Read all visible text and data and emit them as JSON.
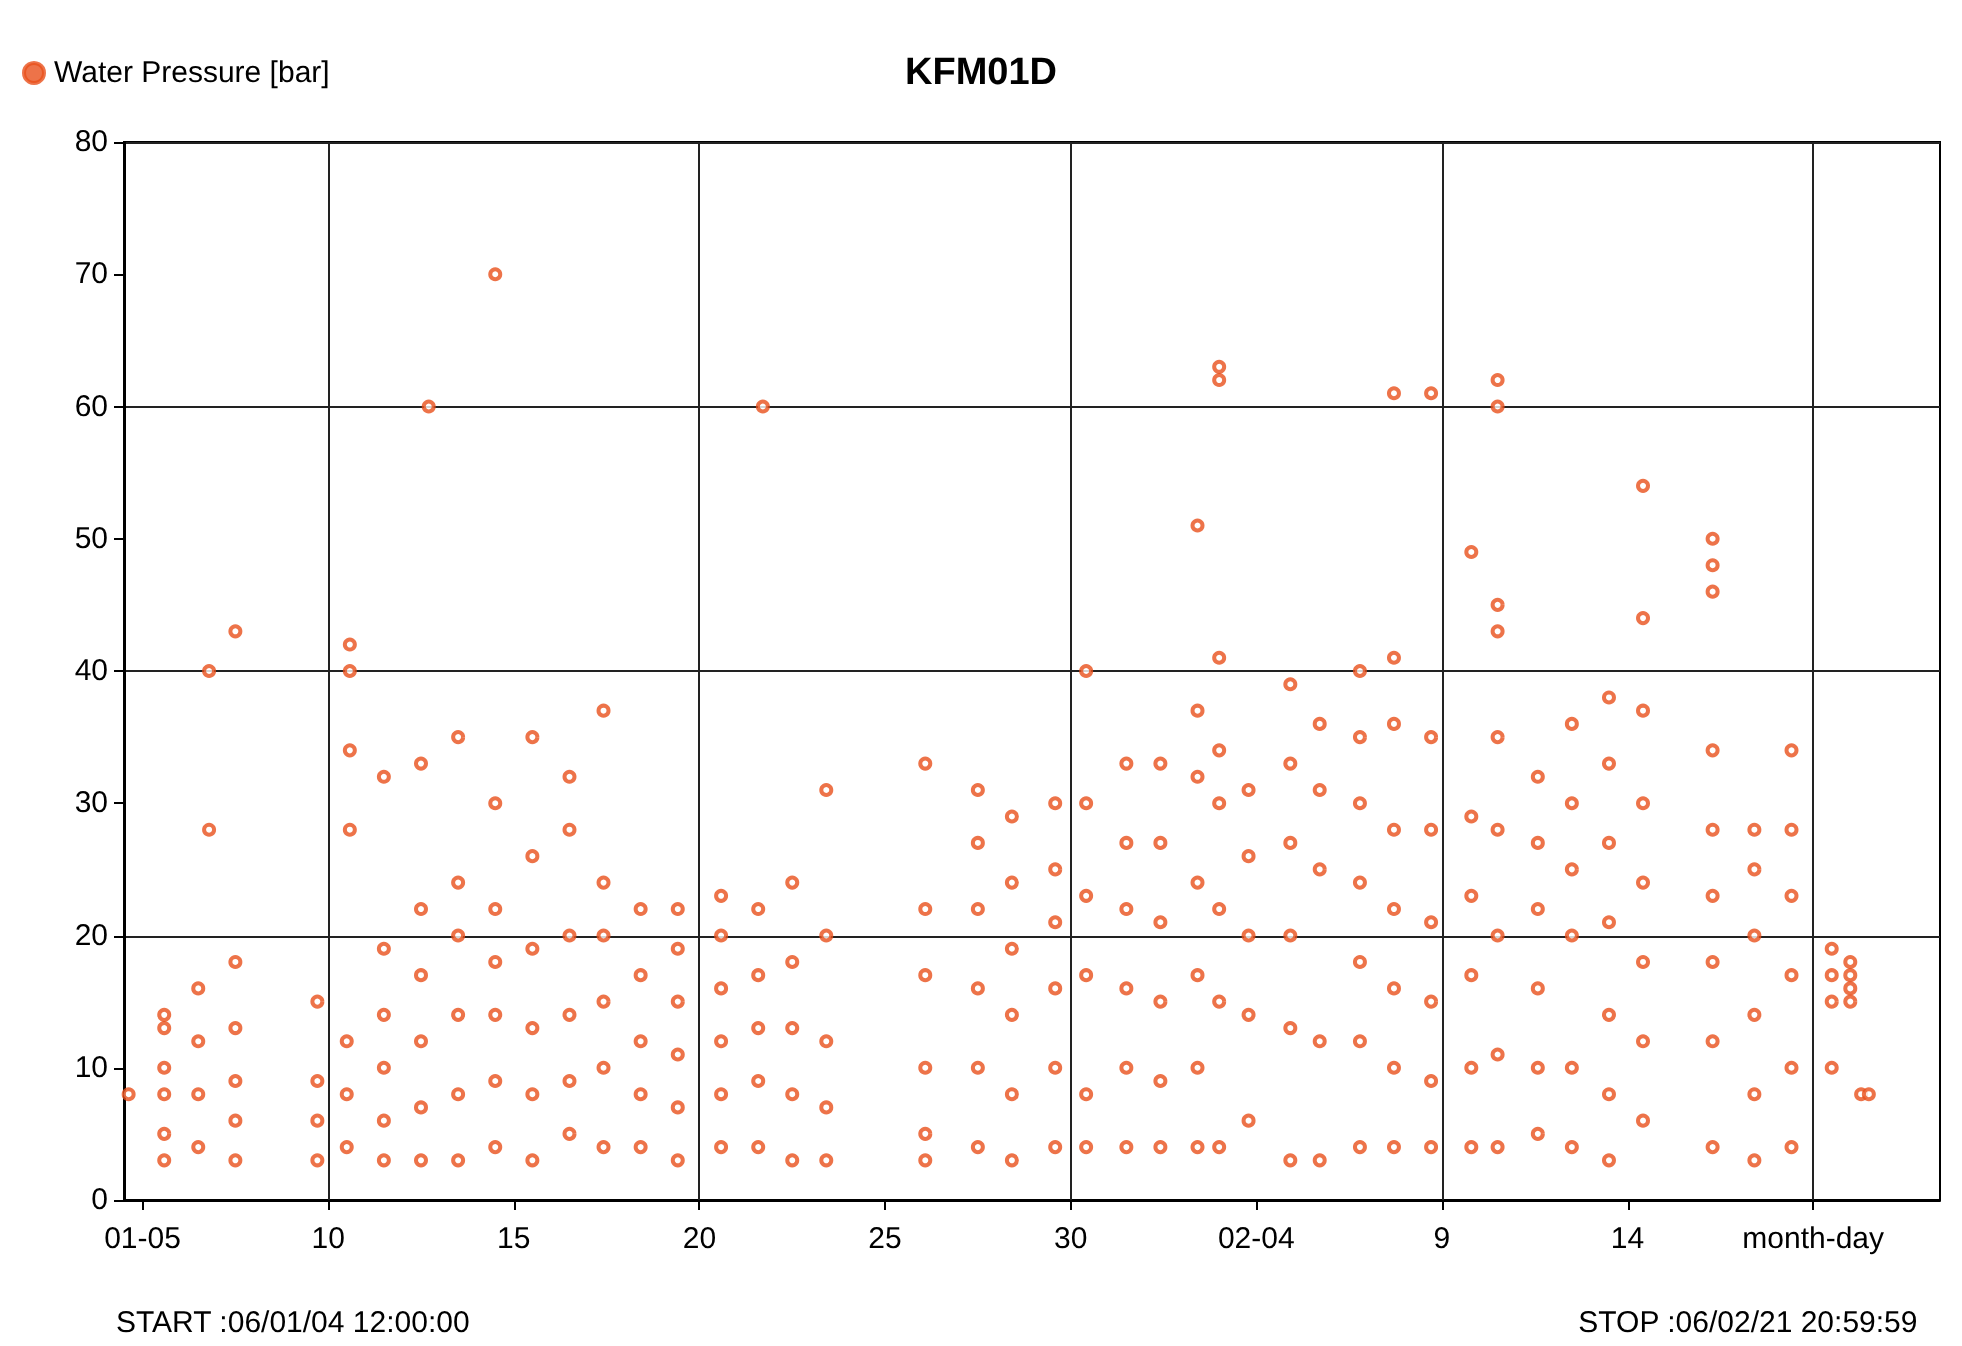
{
  "chart_data": {
    "type": "scatter",
    "title": "KFM01D",
    "annotations": [
      "START :06/01/04 12:00:00",
      "STOP :06/02/21 20:59:59"
    ],
    "xlim": [
      "--01-04T12:00",
      "--02-22T10:00"
    ],
    "xticks": [
      {
        "value": "--01-05",
        "label": "01-05"
      },
      {
        "value": "--01-10",
        "label": "10"
      },
      {
        "value": "--01-15",
        "label": "15"
      },
      {
        "value": "--01-20",
        "label": "20"
      },
      {
        "value": "--01-25",
        "label": "25"
      },
      {
        "value": "--01-30",
        "label": "30"
      },
      {
        "value": "--02-04",
        "label": "02-04"
      },
      {
        "value": "--02-09",
        "label": "9"
      },
      {
        "value": "--02-14",
        "label": "14"
      },
      {
        "value": "--02-19",
        "label": "month-day"
      }
    ],
    "ylim": [
      0,
      80
    ],
    "yticks": [
      0,
      10,
      20,
      30,
      40,
      50,
      60,
      70,
      80
    ],
    "grid": true,
    "legend": "top left",
    "marker": "circle",
    "series": [
      {
        "name": "Water Pressure [bar]",
        "color": "#e8501c",
        "x": [
          "--01-04T15:00",
          "--01-05T14:00",
          "--01-05T14:00",
          "--01-05T14:00",
          "--01-05T14:00",
          "--01-05T14:00",
          "--01-05T14:00",
          "--01-06T12:00",
          "--01-06T12:00",
          "--01-06T12:00",
          "--01-06T12:00",
          "--01-06T19:00",
          "--01-06T19:00",
          "--01-07T12:00",
          "--01-07T12:00",
          "--01-07T12:00",
          "--01-07T12:00",
          "--01-07T12:00",
          "--01-07T12:00",
          "--01-09T17:00",
          "--01-09T17:00",
          "--01-09T17:00",
          "--01-09T17:00",
          "--01-10T12:00",
          "--01-10T12:00",
          "--01-10T12:00",
          "--01-10T14:00",
          "--01-10T14:00",
          "--01-10T14:00",
          "--01-10T14:00",
          "--01-11T12:00",
          "--01-11T12:00",
          "--01-11T12:00",
          "--01-11T12:00",
          "--01-11T12:00",
          "--01-11T12:00",
          "--01-12T12:00",
          "--01-12T12:00",
          "--01-12T12:00",
          "--01-12T12:00",
          "--01-12T12:00",
          "--01-12T12:00",
          "--01-12T17:00",
          "--01-13T12:00",
          "--01-13T12:00",
          "--01-13T12:00",
          "--01-13T12:00",
          "--01-13T12:00",
          "--01-13T12:00",
          "--01-14T12:00",
          "--01-14T12:00",
          "--01-14T12:00",
          "--01-14T12:00",
          "--01-14T12:00",
          "--01-14T12:00",
          "--01-14T12:00",
          "--01-15T12:00",
          "--01-15T12:00",
          "--01-15T12:00",
          "--01-15T12:00",
          "--01-15T12:00",
          "--01-15T12:00",
          "--01-16T12:00",
          "--01-16T12:00",
          "--01-16T12:00",
          "--01-16T12:00",
          "--01-16T12:00",
          "--01-16T12:00",
          "--01-17T10:00",
          "--01-17T10:00",
          "--01-17T10:00",
          "--01-17T10:00",
          "--01-17T10:00",
          "--01-17T10:00",
          "--01-18T10:00",
          "--01-18T10:00",
          "--01-18T10:00",
          "--01-18T10:00",
          "--01-18T10:00",
          "--01-19T10:00",
          "--01-19T10:00",
          "--01-19T10:00",
          "--01-19T10:00",
          "--01-19T10:00",
          "--01-19T10:00",
          "--01-20T14:00",
          "--01-20T14:00",
          "--01-20T14:00",
          "--01-20T14:00",
          "--01-20T14:00",
          "--01-20T14:00",
          "--01-21T14:00",
          "--01-21T14:00",
          "--01-21T14:00",
          "--01-21T14:00",
          "--01-21T14:00",
          "--01-21T17:00",
          "--01-22T12:00",
          "--01-22T12:00",
          "--01-22T12:00",
          "--01-22T12:00",
          "--01-22T12:00",
          "--01-23T10:00",
          "--01-23T10:00",
          "--01-23T10:00",
          "--01-23T10:00",
          "--01-23T10:00",
          "--01-26T02:00",
          "--01-26T02:00",
          "--01-26T02:00",
          "--01-26T02:00",
          "--01-26T02:00",
          "--01-26T02:00",
          "--01-27T12:00",
          "--01-27T12:00",
          "--01-27T12:00",
          "--01-27T12:00",
          "--01-27T12:00",
          "--01-27T12:00",
          "--01-28T10:00",
          "--01-28T10:00",
          "--01-28T10:00",
          "--01-28T10:00",
          "--01-28T10:00",
          "--01-28T10:00",
          "--01-29T14:00",
          "--01-29T14:00",
          "--01-29T14:00",
          "--01-29T14:00",
          "--01-29T14:00",
          "--01-29T14:00",
          "--01-30T10:00",
          "--01-30T10:00",
          "--01-30T10:00",
          "--01-30T10:00",
          "--01-30T10:00",
          "--01-30T10:00",
          "--01-31T12:00",
          "--01-31T12:00",
          "--01-31T12:00",
          "--01-31T12:00",
          "--01-31T12:00",
          "--01-31T12:00",
          "--02-01T10:00",
          "--02-01T10:00",
          "--02-01T10:00",
          "--02-01T10:00",
          "--02-01T10:00",
          "--02-01T10:00",
          "--02-02T10:00",
          "--02-02T10:00",
          "--02-02T10:00",
          "--02-02T10:00",
          "--02-02T10:00",
          "--02-02T10:00",
          "--02-02T10:00",
          "--02-03T00:00",
          "--02-03T00:00",
          "--02-03T00:00",
          "--02-03T00:00",
          "--02-03T00:00",
          "--02-03T00:00",
          "--02-03T00:00",
          "--02-03T00:00",
          "--02-03T19:00",
          "--02-03T19:00",
          "--02-03T19:00",
          "--02-03T19:00",
          "--02-03T19:00",
          "--02-04T22:00",
          "--02-04T22:00",
          "--02-04T22:00",
          "--02-04T22:00",
          "--02-04T22:00",
          "--02-04T22:00",
          "--02-05T17:00",
          "--02-05T17:00",
          "--02-05T17:00",
          "--02-05T17:00",
          "--02-05T17:00",
          "--02-06T19:00",
          "--02-06T19:00",
          "--02-06T19:00",
          "--02-06T19:00",
          "--02-06T19:00",
          "--02-06T19:00",
          "--02-06T19:00",
          "--02-07T17:00",
          "--02-07T17:00",
          "--02-07T17:00",
          "--02-07T17:00",
          "--02-07T17:00",
          "--02-07T17:00",
          "--02-07T17:00",
          "--02-07T17:00",
          "--02-08T17:00",
          "--02-08T17:00",
          "--02-08T17:00",
          "--02-08T17:00",
          "--02-08T17:00",
          "--02-08T17:00",
          "--02-08T17:00",
          "--02-09T19:00",
          "--02-09T19:00",
          "--02-09T19:00",
          "--02-09T19:00",
          "--02-09T19:00",
          "--02-09T19:00",
          "--02-10T12:00",
          "--02-10T12:00",
          "--02-10T12:00",
          "--02-10T12:00",
          "--02-10T12:00",
          "--02-10T12:00",
          "--02-10T12:00",
          "--02-10T12:00",
          "--02-10T12:00",
          "--02-11T14:00",
          "--02-11T14:00",
          "--02-11T14:00",
          "--02-11T14:00",
          "--02-11T14:00",
          "--02-11T14:00",
          "--02-12T12:00",
          "--02-12T12:00",
          "--02-12T12:00",
          "--02-12T12:00",
          "--02-12T12:00",
          "--02-12T12:00",
          "--02-13T12:00",
          "--02-13T12:00",
          "--02-13T12:00",
          "--02-13T12:00",
          "--02-13T12:00",
          "--02-13T12:00",
          "--02-13T12:00",
          "--02-14T10:00",
          "--02-14T10:00",
          "--02-14T10:00",
          "--02-14T10:00",
          "--02-14T10:00",
          "--02-14T10:00",
          "--02-14T10:00",
          "--02-14T10:00",
          "--02-16T07:00",
          "--02-16T07:00",
          "--02-16T07:00",
          "--02-16T07:00",
          "--02-16T07:00",
          "--02-16T07:00",
          "--02-16T07:00",
          "--02-16T07:00",
          "--02-16T07:00",
          "--02-17T10:00",
          "--02-17T10:00",
          "--02-17T10:00",
          "--02-17T10:00",
          "--02-17T10:00",
          "--02-17T10:00",
          "--02-18T10:00",
          "--02-18T10:00",
          "--02-18T10:00",
          "--02-18T10:00",
          "--02-18T10:00",
          "--02-18T10:00",
          "--02-19T12:00",
          "--02-19T12:00",
          "--02-19T12:00",
          "--02-19T12:00",
          "--02-20T00:00",
          "--02-20T00:00",
          "--02-20T00:00",
          "--02-20T00:00",
          "--02-20T07:00",
          "--02-20T12:00"
        ],
        "values": [
          8,
          3,
          5,
          8,
          10,
          13,
          14,
          4,
          8,
          12,
          16,
          28,
          40,
          3,
          6,
          9,
          13,
          18,
          43,
          3,
          6,
          9,
          15,
          4,
          8,
          12,
          28,
          34,
          40,
          42,
          3,
          6,
          10,
          14,
          19,
          32,
          3,
          7,
          12,
          17,
          22,
          33,
          60,
          3,
          8,
          14,
          20,
          24,
          35,
          4,
          9,
          14,
          18,
          22,
          30,
          70,
          3,
          8,
          13,
          19,
          26,
          35,
          5,
          9,
          14,
          20,
          28,
          32,
          4,
          10,
          15,
          20,
          24,
          37,
          4,
          8,
          12,
          17,
          22,
          3,
          7,
          11,
          15,
          19,
          22,
          4,
          8,
          12,
          16,
          20,
          23,
          4,
          9,
          13,
          17,
          22,
          60,
          3,
          8,
          13,
          18,
          24,
          3,
          7,
          12,
          20,
          31,
          3,
          5,
          10,
          17,
          22,
          33,
          4,
          10,
          16,
          22,
          27,
          31,
          3,
          8,
          14,
          19,
          24,
          29,
          4,
          10,
          16,
          21,
          25,
          30,
          4,
          8,
          17,
          23,
          30,
          40,
          4,
          10,
          16,
          22,
          27,
          33,
          4,
          9,
          15,
          21,
          27,
          33,
          4,
          10,
          17,
          24,
          32,
          37,
          51,
          4,
          15,
          22,
          30,
          34,
          41,
          62,
          63,
          6,
          14,
          20,
          26,
          31,
          3,
          13,
          20,
          27,
          33,
          39,
          3,
          12,
          25,
          31,
          36,
          4,
          12,
          18,
          24,
          30,
          35,
          40,
          4,
          10,
          16,
          22,
          28,
          36,
          41,
          61,
          4,
          9,
          15,
          21,
          28,
          35,
          61,
          4,
          10,
          17,
          23,
          29,
          49,
          4,
          11,
          20,
          28,
          35,
          43,
          45,
          60,
          62,
          5,
          10,
          16,
          22,
          27,
          32,
          4,
          10,
          20,
          25,
          30,
          36,
          3,
          8,
          14,
          21,
          27,
          33,
          38,
          6,
          12,
          18,
          24,
          30,
          37,
          44,
          54,
          4,
          12,
          18,
          23,
          28,
          34,
          46,
          48,
          50,
          3,
          8,
          14,
          20,
          25,
          28,
          4,
          10,
          17,
          23,
          28,
          34,
          10,
          15,
          17,
          19,
          15,
          16,
          17,
          18,
          8,
          8
        ]
      }
    ]
  }
}
